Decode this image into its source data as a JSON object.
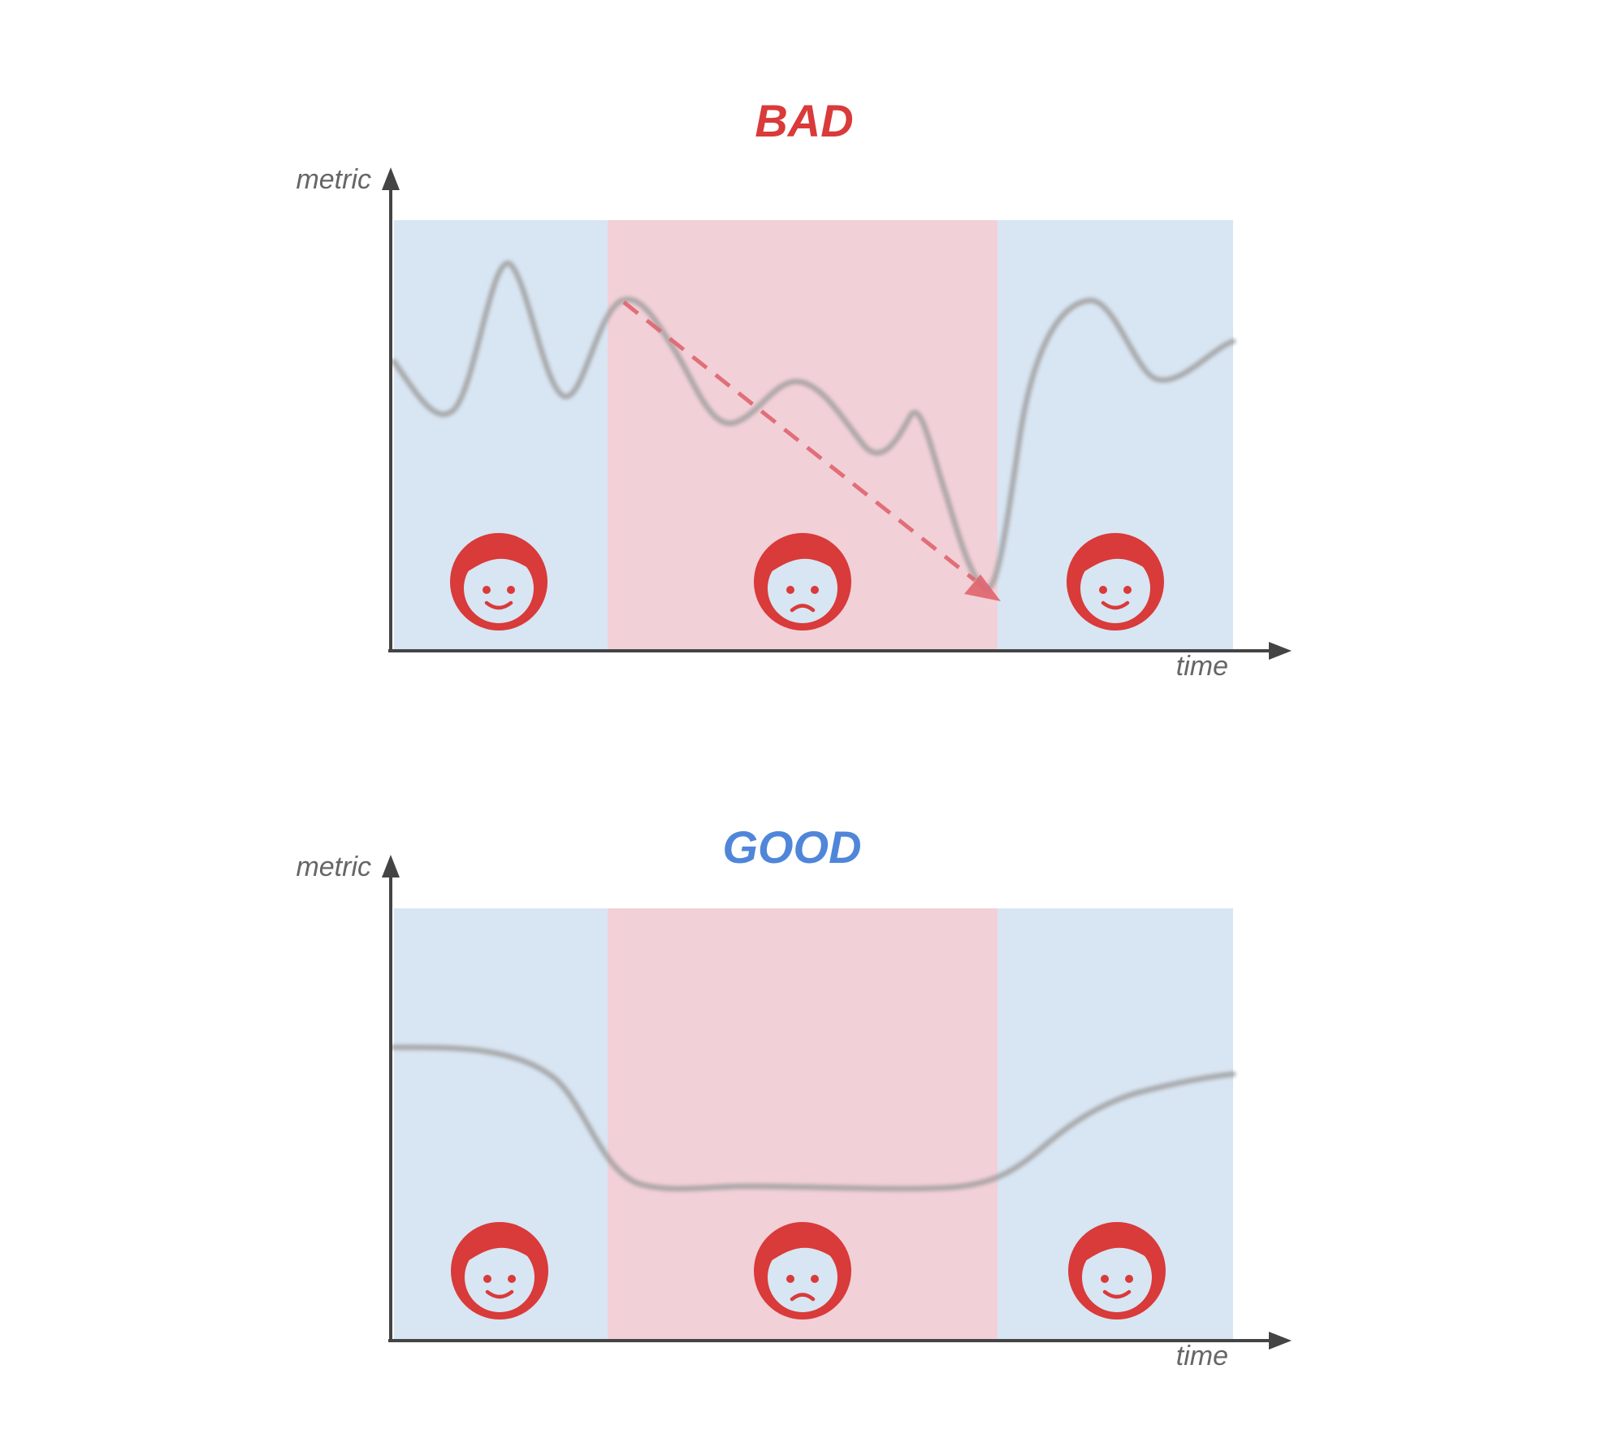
{
  "colors": {
    "background": "#ffffff",
    "bad_title": "#d93a3a",
    "good_title": "#4f86d9",
    "calm_band": "#d8e5f2",
    "incident_band": "#f2d0d7",
    "curve": "#9e9e9e",
    "axis": "#444444",
    "face": "#d93a3a",
    "face_skin": "#d8e5f2",
    "trend_arrow": "#e0646e"
  },
  "panels": [
    {
      "title": "BAD",
      "title_color_key": "bad_title",
      "y_axis_label": "metric",
      "x_axis_label": "time",
      "bands": [
        "calm",
        "incident",
        "calm"
      ],
      "faces": [
        {
          "icon": "happy-face-icon",
          "mood": "happy"
        },
        {
          "icon": "sad-face-icon",
          "mood": "sad"
        },
        {
          "icon": "happy-face-icon",
          "mood": "happy"
        }
      ],
      "curve_shape": "noisy",
      "has_trend_arrow": true
    },
    {
      "title": "GOOD",
      "title_color_key": "good_title",
      "y_axis_label": "metric",
      "x_axis_label": "time",
      "bands": [
        "calm",
        "incident",
        "calm"
      ],
      "faces": [
        {
          "icon": "happy-face-icon",
          "mood": "happy"
        },
        {
          "icon": "sad-face-icon",
          "mood": "sad"
        },
        {
          "icon": "happy-face-icon",
          "mood": "happy"
        }
      ],
      "curve_shape": "smooth",
      "has_trend_arrow": false
    }
  ]
}
